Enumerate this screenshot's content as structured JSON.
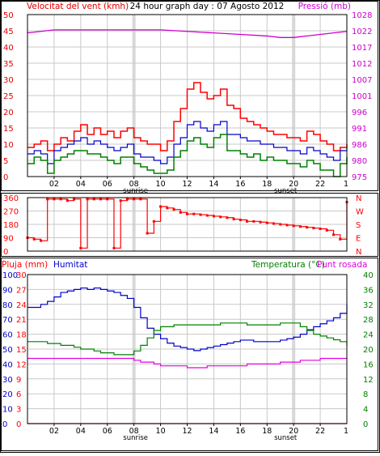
{
  "colors": {
    "wind": "#e00000",
    "wind_gust": "#ff0000",
    "wind_avg": "#0000cc",
    "wind_min": "#008000",
    "pressure": "#cc00cc",
    "direction": "#ff0000",
    "rain": "#ff0000",
    "humidity": "#0000cc",
    "temperature": "#008000",
    "dewpoint": "#e000e0",
    "grid": "#c8c8c8",
    "sun_band": "#d8d8d8",
    "axis": "#000000"
  },
  "header": {
    "wind_label": "Velocitat del vent (kmh)",
    "title": "24 hour graph day : 07 Agosto 2012",
    "pressure_label": "Pressió (mb)"
  },
  "x_axis": {
    "ticks": [
      "02",
      "04",
      "06",
      "08",
      "10",
      "12",
      "14",
      "16",
      "18",
      "20",
      "22"
    ],
    "sunrise_label": "sunrise",
    "sunset_label": "sunset"
  },
  "chart_data": [
    {
      "type": "line",
      "id": "wind_pressure",
      "x_unit": "hour",
      "xlim": [
        0,
        24
      ],
      "left_axis": {
        "ylim": [
          0,
          50
        ],
        "ticks": [
          "0",
          "5",
          "10",
          "15",
          "20",
          "25",
          "30",
          "35",
          "40",
          "45",
          "50"
        ]
      },
      "right_axis": {
        "ylim": [
          975,
          1028
        ],
        "ticks": [
          "975",
          "980",
          "986",
          "991",
          "996",
          "1001",
          "1007",
          "1012",
          "1017",
          "1022",
          "1028"
        ]
      },
      "series": [
        {
          "role": "wind_gust",
          "x": [
            0,
            0.5,
            1,
            1.5,
            2,
            2.5,
            3,
            3.5,
            4,
            4.5,
            5,
            5.5,
            6,
            6.5,
            7,
            7.5,
            8,
            8.5,
            9,
            9.5,
            10,
            10.5,
            11,
            11.5,
            12,
            12.5,
            13,
            13.5,
            14,
            14.5,
            15,
            15.5,
            16,
            16.5,
            17,
            17.5,
            18,
            18.5,
            19,
            19.5,
            20,
            20.5,
            21,
            21.5,
            22,
            22.5,
            23,
            23.5,
            24
          ],
          "values": [
            9,
            10,
            11,
            8,
            10,
            12,
            11,
            14,
            16,
            13,
            15,
            13,
            14,
            12,
            14,
            15,
            12,
            11,
            10,
            10,
            8,
            11,
            17,
            21,
            27,
            29,
            26,
            24,
            25,
            27,
            22,
            21,
            18,
            17,
            16,
            15,
            14,
            13,
            13,
            12,
            12,
            11,
            14,
            13,
            11,
            10,
            8,
            9,
            10
          ]
        },
        {
          "role": "wind_avg",
          "x": [
            0,
            0.5,
            1,
            1.5,
            2,
            2.5,
            3,
            3.5,
            4,
            4.5,
            5,
            5.5,
            6,
            6.5,
            7,
            7.5,
            8,
            8.5,
            9,
            9.5,
            10,
            10.5,
            11,
            11.5,
            12,
            12.5,
            13,
            13.5,
            14,
            14.5,
            15,
            15.5,
            16,
            16.5,
            17,
            17.5,
            18,
            18.5,
            19,
            19.5,
            20,
            20.5,
            21,
            21.5,
            22,
            22.5,
            23,
            23.5,
            24
          ],
          "values": [
            7,
            8,
            7,
            4,
            8,
            9,
            10,
            11,
            12,
            10,
            11,
            10,
            9,
            8,
            9,
            10,
            7,
            6,
            6,
            5,
            4,
            6,
            10,
            12,
            16,
            17,
            15,
            14,
            16,
            17,
            13,
            13,
            12,
            11,
            11,
            10,
            10,
            9,
            9,
            8,
            8,
            7,
            9,
            8,
            7,
            6,
            5,
            8,
            9
          ]
        },
        {
          "role": "wind_min",
          "x": [
            0,
            0.5,
            1,
            1.5,
            2,
            2.5,
            3,
            3.5,
            4,
            4.5,
            5,
            5.5,
            6,
            6.5,
            7,
            7.5,
            8,
            8.5,
            9,
            9.5,
            10,
            10.5,
            11,
            11.5,
            12,
            12.5,
            13,
            13.5,
            14,
            14.5,
            15,
            15.5,
            16,
            16.5,
            17,
            17.5,
            18,
            18.5,
            19,
            19.5,
            20,
            20.5,
            21,
            21.5,
            22,
            22.5,
            23,
            23.5,
            24
          ],
          "values": [
            4,
            6,
            5,
            1,
            5,
            6,
            7,
            8,
            8,
            7,
            7,
            6,
            5,
            4,
            6,
            6,
            4,
            3,
            2,
            1,
            1,
            2,
            6,
            8,
            11,
            12,
            10,
            9,
            12,
            13,
            8,
            8,
            7,
            6,
            7,
            5,
            6,
            5,
            5,
            4,
            4,
            3,
            5,
            4,
            2,
            2,
            0,
            4,
            6
          ]
        },
        {
          "role": "pressure",
          "x": [
            0,
            2,
            4,
            6,
            8,
            10,
            12,
            14,
            16,
            18,
            19,
            20,
            21,
            22,
            23,
            24
          ],
          "values": [
            1022,
            1023,
            1023,
            1023,
            1023,
            1023,
            1022.5,
            1022,
            1021.5,
            1021,
            1020.5,
            1020.5,
            1021,
            1021.5,
            1022,
            1022.5
          ]
        }
      ]
    },
    {
      "type": "scatter",
      "id": "wind_direction",
      "x_unit": "hour",
      "xlim": [
        0,
        24
      ],
      "left_axis": {
        "ylim": [
          0,
          360
        ],
        "ticks": [
          "0",
          "90",
          "180",
          "270",
          "360"
        ]
      },
      "right_axis": {
        "ticks": [
          "N",
          "E",
          "S",
          "W",
          "N"
        ]
      },
      "series": [
        {
          "role": "direction",
          "x": [
            0,
            0.5,
            1,
            1.5,
            2,
            2.5,
            3,
            3.5,
            4,
            4.5,
            5,
            5.5,
            6,
            6.5,
            7,
            7.5,
            8,
            8.5,
            9,
            9.5,
            10,
            10.5,
            11,
            11.5,
            12,
            12.5,
            13,
            13.5,
            14,
            14.5,
            15,
            15.5,
            16,
            16.5,
            17,
            17.5,
            18,
            18.5,
            19,
            19.5,
            20,
            20.5,
            21,
            21.5,
            22,
            22.5,
            23,
            23.5,
            24
          ],
          "values": [
            90,
            80,
            70,
            350,
            350,
            350,
            340,
            350,
            20,
            350,
            350,
            350,
            350,
            20,
            340,
            350,
            350,
            350,
            120,
            200,
            300,
            290,
            280,
            260,
            250,
            250,
            245,
            240,
            235,
            230,
            225,
            215,
            210,
            200,
            200,
            195,
            190,
            185,
            180,
            175,
            170,
            165,
            160,
            155,
            150,
            140,
            110,
            80,
            330
          ]
        }
      ]
    },
    {
      "type": "line",
      "id": "rain_humidity_temp",
      "x_unit": "hour",
      "xlim": [
        0,
        24
      ],
      "left_axis_rain": {
        "ylim": [
          0,
          30
        ],
        "ticks": [
          "0",
          "3",
          "6",
          "9",
          "12",
          "15",
          "18",
          "21",
          "24",
          "27",
          "30"
        ]
      },
      "left_axis_humidity": {
        "ylim": [
          0,
          100
        ],
        "ticks": [
          "0",
          "10",
          "20",
          "30",
          "40",
          "50",
          "60",
          "70",
          "80",
          "90",
          "100"
        ]
      },
      "right_axis": {
        "ylim": [
          0,
          40
        ],
        "ticks": [
          "0",
          "4",
          "8",
          "12",
          "16",
          "20",
          "24",
          "28",
          "32",
          "36",
          "40"
        ]
      },
      "labels": {
        "rain": "Pluja (mm)",
        "humidity": "Humitat",
        "temperature": "Temperatura (°C)",
        "dewpoint": "Punt rosada"
      },
      "series": [
        {
          "role": "rain",
          "x": [
            0,
            24
          ],
          "values": [
            0,
            0
          ]
        },
        {
          "role": "humidity",
          "x": [
            0,
            0.5,
            1,
            1.5,
            2,
            2.5,
            3,
            3.5,
            4,
            4.5,
            5,
            5.5,
            6,
            6.5,
            7,
            7.5,
            8,
            8.5,
            9,
            9.5,
            10,
            10.5,
            11,
            11.5,
            12,
            12.5,
            13,
            13.5,
            14,
            14.5,
            15,
            15.5,
            16,
            16.5,
            17,
            17.5,
            18,
            18.5,
            19,
            19.5,
            20,
            20.5,
            21,
            21.5,
            22,
            22.5,
            23,
            23.5,
            24
          ],
          "values": [
            78,
            78,
            80,
            82,
            85,
            88,
            89,
            90,
            91,
            90,
            91,
            90,
            89,
            88,
            86,
            84,
            78,
            71,
            64,
            60,
            57,
            54,
            52,
            51,
            50,
            49,
            50,
            51,
            52,
            53,
            54,
            55,
            56,
            56,
            55,
            55,
            55,
            55,
            56,
            57,
            58,
            60,
            63,
            65,
            67,
            69,
            71,
            74,
            80
          ]
        },
        {
          "role": "temperature",
          "x": [
            0,
            0.5,
            1,
            1.5,
            2,
            2.5,
            3,
            3.5,
            4,
            4.5,
            5,
            5.5,
            6,
            6.5,
            7,
            7.5,
            8,
            8.5,
            9,
            9.5,
            10,
            10.5,
            11,
            11.5,
            12,
            12.5,
            13,
            13.5,
            14,
            14.5,
            15,
            15.5,
            16,
            16.5,
            17,
            17.5,
            18,
            18.5,
            19,
            19.5,
            20,
            20.5,
            21,
            21.5,
            22,
            22.5,
            23,
            23.5,
            24
          ],
          "values": [
            22,
            22,
            22,
            21.5,
            21.5,
            21,
            21,
            20.5,
            20,
            20,
            19.5,
            19,
            19,
            18.5,
            18.5,
            18.5,
            19.5,
            21,
            23,
            25,
            26,
            26,
            26.5,
            26.5,
            26.5,
            26.5,
            26.5,
            26.5,
            26.5,
            27,
            27,
            27,
            27,
            26.5,
            26.5,
            26.5,
            26.5,
            26.5,
            27,
            27,
            27,
            26,
            25,
            24,
            23.5,
            23,
            22.5,
            22,
            21
          ]
        },
        {
          "role": "dewpoint",
          "x": [
            0,
            0.5,
            1,
            1.5,
            2,
            2.5,
            3,
            3.5,
            4,
            4.5,
            5,
            5.5,
            6,
            6.5,
            7,
            7.5,
            8,
            8.5,
            9,
            9.5,
            10,
            10.5,
            11,
            11.5,
            12,
            12.5,
            13,
            13.5,
            14,
            14.5,
            15,
            15.5,
            16,
            16.5,
            17,
            17.5,
            18,
            18.5,
            19,
            19.5,
            20,
            20.5,
            21,
            21.5,
            22,
            22.5,
            23,
            23.5,
            24
          ],
          "values": [
            17.5,
            17.5,
            17.5,
            17.5,
            17.5,
            17.5,
            17.5,
            17.5,
            17.5,
            17.5,
            17.5,
            17.5,
            17.5,
            17.5,
            17.5,
            17.5,
            17,
            16.5,
            16.5,
            16,
            15.5,
            15.5,
            15.5,
            15.5,
            15,
            15,
            15,
            15.5,
            15.5,
            15.5,
            15.5,
            15.5,
            15.5,
            16,
            16,
            16,
            16,
            16,
            16.5,
            16.5,
            16.5,
            17,
            17,
            17,
            17.5,
            17.5,
            17.5,
            17.5,
            17.5
          ]
        }
      ]
    }
  ]
}
